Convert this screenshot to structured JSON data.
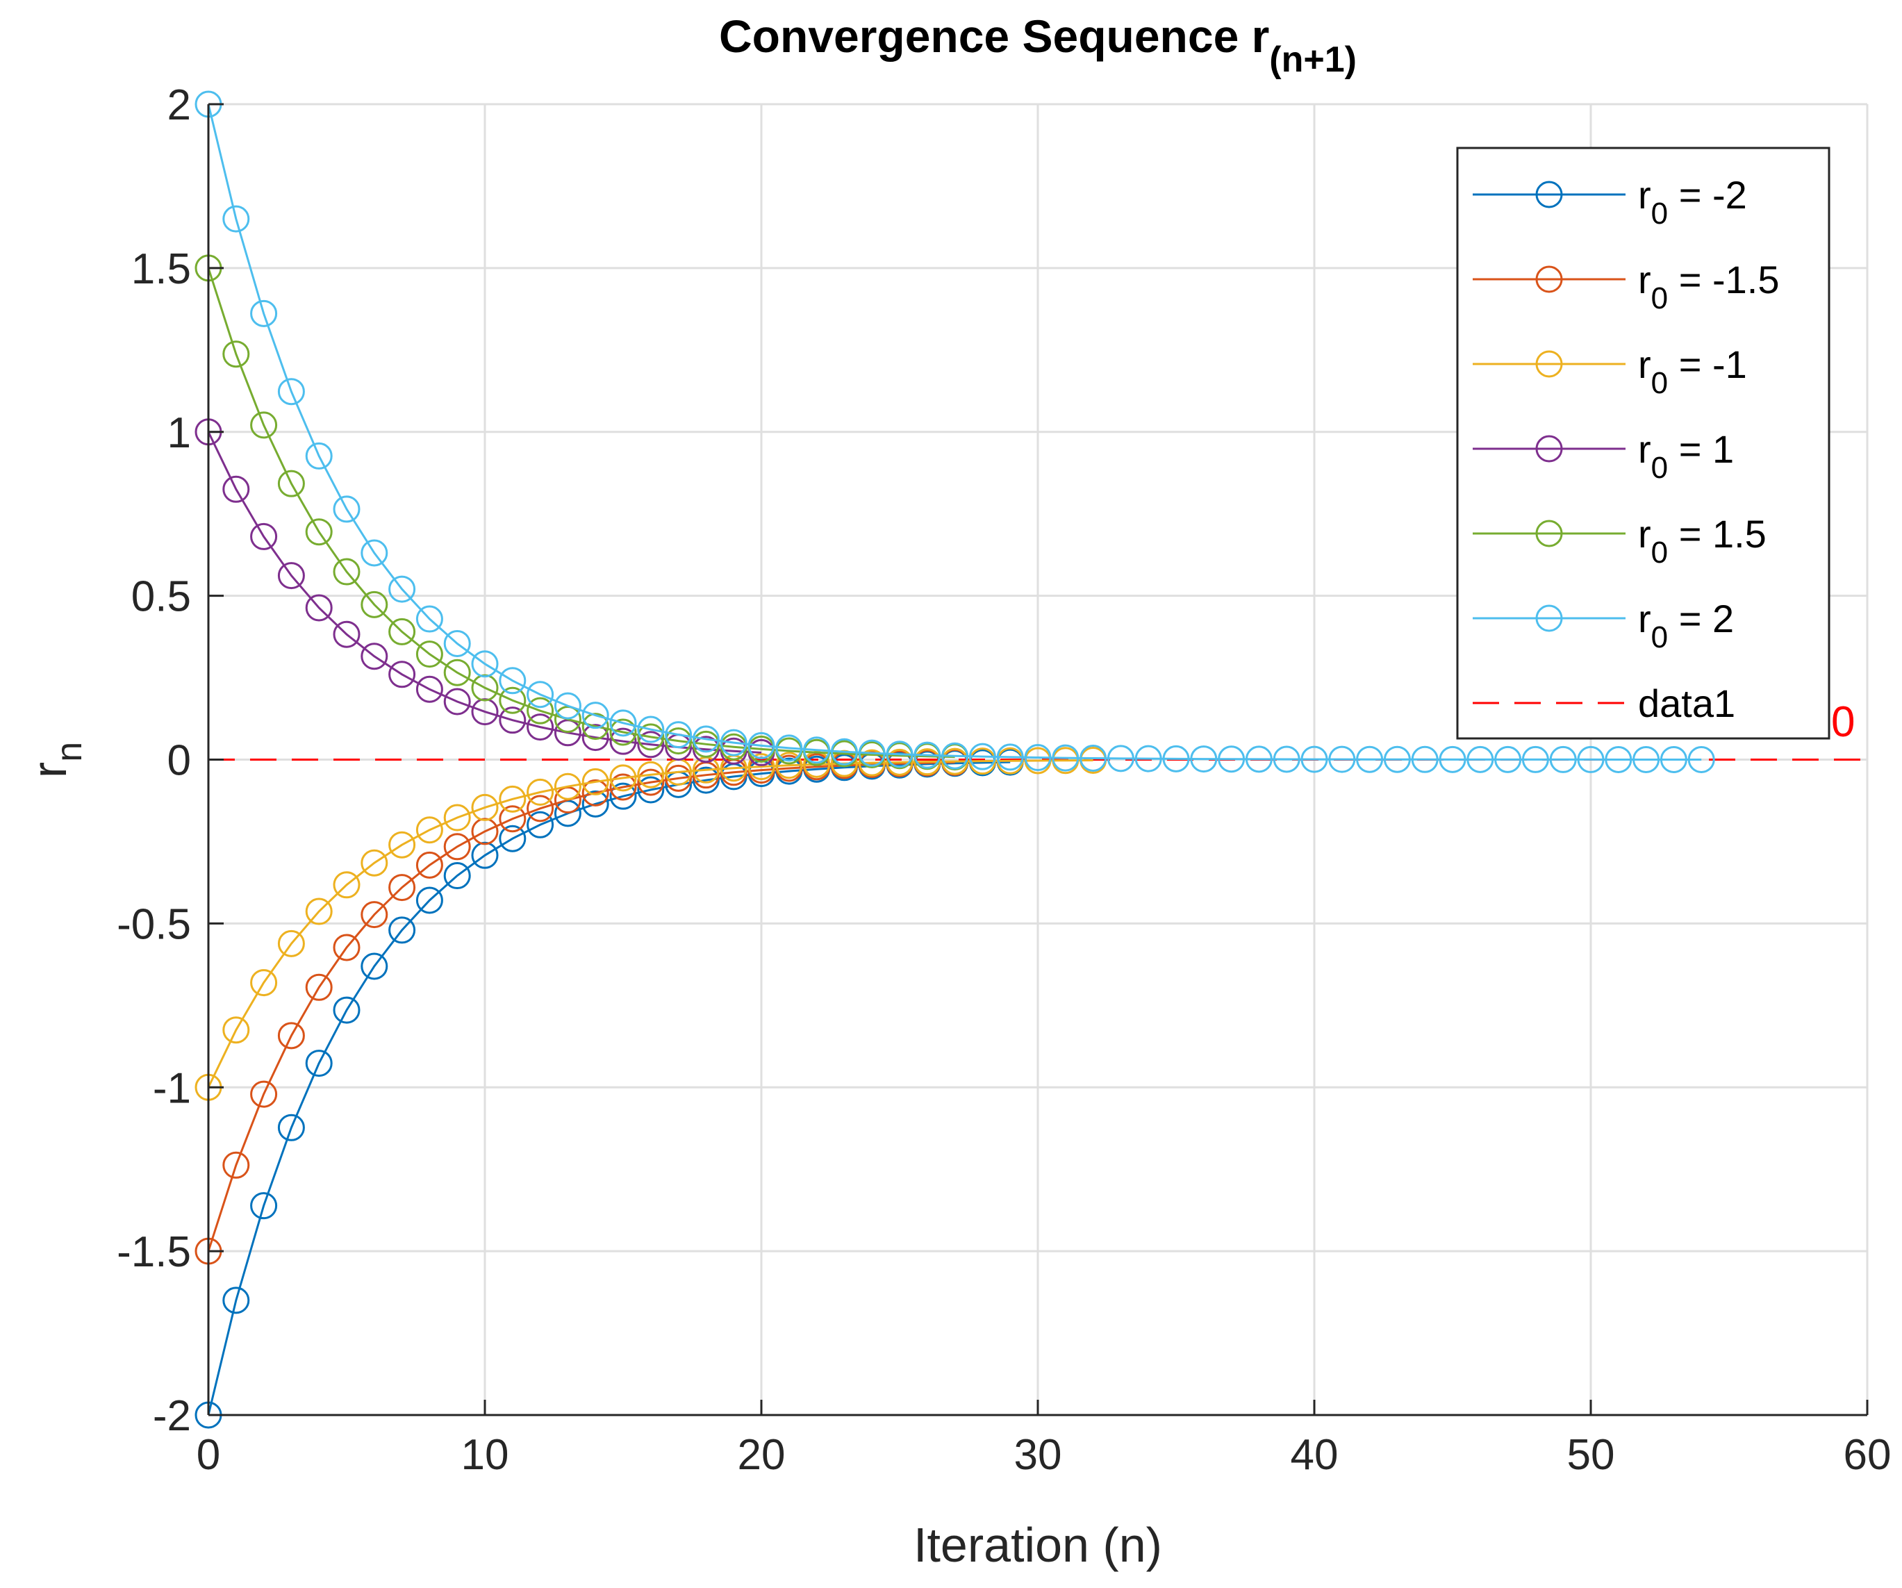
{
  "chart_data": {
    "type": "line",
    "title": "Convergence Sequence r",
    "title_subscript": "(n+1)",
    "xlabel": "Iteration (n)",
    "ylabel": "r",
    "ylabel_subscript": "n",
    "xlim": [
      0,
      60
    ],
    "ylim": [
      -2,
      2
    ],
    "xticks": [
      0,
      10,
      20,
      30,
      40,
      50,
      60
    ],
    "yticks": [
      -2,
      -1.5,
      -1,
      -0.5,
      0,
      0.5,
      1,
      1.5,
      2
    ],
    "xtick_labels": [
      "0",
      "10",
      "20",
      "30",
      "40",
      "50",
      "60"
    ],
    "ytick_labels": [
      "-2",
      "-1.5",
      "-1",
      "-0.5",
      "0",
      "0.5",
      "1",
      "1.5",
      "2"
    ],
    "grid": true,
    "legend_position": "top-right",
    "decay_ratio": 0.825,
    "series": [
      {
        "name": "r0 = -2",
        "label_prefix": "r",
        "label_sub": "0",
        "label_suffix": " = -2",
        "r0": -2,
        "n_points": 30,
        "color": "#0072BD",
        "marker": "circle"
      },
      {
        "name": "r0 = -1.5",
        "label_prefix": "r",
        "label_sub": "0",
        "label_suffix": " = -1.5",
        "r0": -1.5,
        "n_points": 28,
        "color": "#D95319",
        "marker": "circle"
      },
      {
        "name": "r0 = -1",
        "label_prefix": "r",
        "label_sub": "0",
        "label_suffix": " = -1",
        "r0": -1,
        "n_points": 33,
        "color": "#EDB120",
        "marker": "circle"
      },
      {
        "name": "r0 = 1",
        "label_prefix": "r",
        "label_sub": "0",
        "label_suffix": " = 1",
        "r0": 1,
        "n_points": 21,
        "color": "#7E2F8E",
        "marker": "circle"
      },
      {
        "name": "r0 = 1.5",
        "label_prefix": "r",
        "label_sub": "0",
        "label_suffix": " = 1.5",
        "r0": 1.5,
        "n_points": 28,
        "color": "#77AC30",
        "marker": "circle"
      },
      {
        "name": "r0 = 2",
        "label_prefix": "r",
        "label_sub": "0",
        "label_suffix": " = 2",
        "r0": 2,
        "n_points": 55,
        "color": "#4DBEEE",
        "marker": "circle"
      }
    ],
    "reference_line": {
      "name": "data1",
      "y": 0,
      "color": "#FF0000",
      "style": "dashed"
    },
    "annotation": {
      "text": "0",
      "x": 58.5,
      "y": 0.02,
      "color": "#FF0000"
    }
  }
}
